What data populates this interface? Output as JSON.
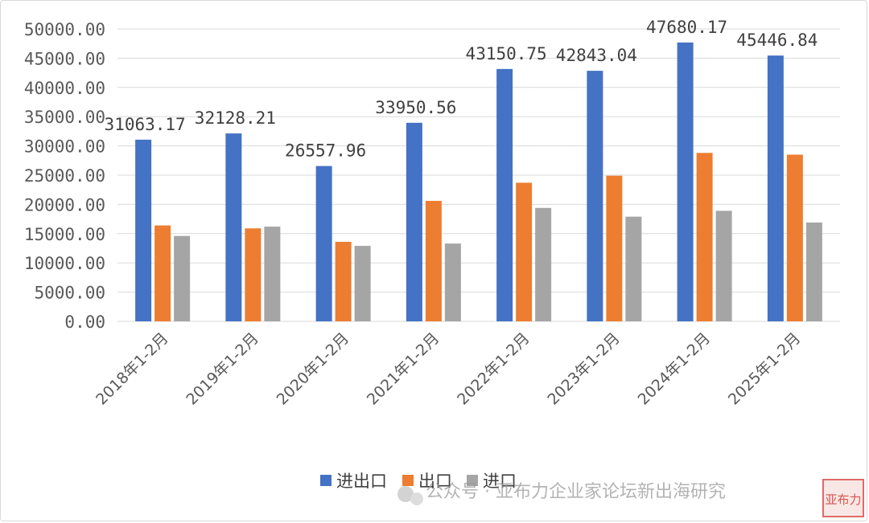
{
  "chart_data": {
    "type": "bar",
    "title": "",
    "xlabel": "",
    "ylabel": "",
    "ylim": [
      0,
      50000
    ],
    "yticks": [
      "0.00",
      "5000.00",
      "10000.00",
      "15000.00",
      "20000.00",
      "25000.00",
      "30000.00",
      "35000.00",
      "40000.00",
      "45000.00",
      "50000.00"
    ],
    "grid": true,
    "legend_position": "bottom",
    "categories": [
      "2018年1-2月",
      "2019年1-2月",
      "2020年1-2月",
      "2021年1-2月",
      "2022年1-2月",
      "2023年1-2月",
      "2024年1-2月",
      "2025年1-2月"
    ],
    "series": [
      {
        "name": "进出口",
        "color": "#4472C4",
        "values": [
          31063.17,
          32128.21,
          26557.96,
          33950.56,
          43150.75,
          42843.04,
          47680.17,
          45446.84
        ],
        "data_labels": [
          "31063.17",
          "32128.21",
          "26557.96",
          "33950.56",
          "43150.75",
          "42843.04",
          "47680.17",
          "45446.84"
        ]
      },
      {
        "name": "出口",
        "color": "#ED7D31",
        "values": [
          16400,
          15900,
          13600,
          20600,
          23700,
          24900,
          28800,
          28500
        ]
      },
      {
        "name": "进口",
        "color": "#A5A5A5",
        "values": [
          14600,
          16200,
          12900,
          13300,
          19400,
          17900,
          18900,
          16900
        ]
      }
    ]
  },
  "watermark": {
    "text": "公众号 · 亚布力企业家论坛新出海研究",
    "seal_text": "亚布力"
  }
}
